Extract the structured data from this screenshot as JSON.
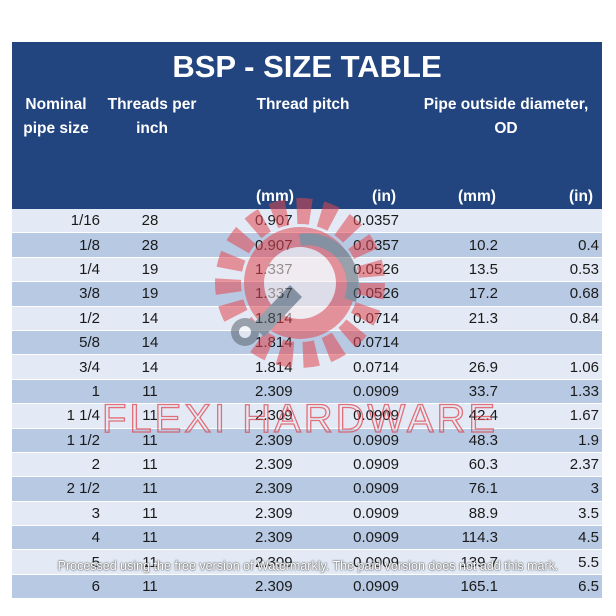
{
  "title": "BSP - SIZE TABLE",
  "headers": {
    "nominal_line1": "Nominal",
    "nominal_line2": "pipe size",
    "threads_line1": "Threads per",
    "threads_line2": "inch",
    "pitch": "Thread pitch",
    "od_line1": "Pipe outside diameter,",
    "od_line2": "OD",
    "unit_mm_1": "(mm)",
    "unit_in_1": "(in)",
    "unit_mm_2": "(mm)",
    "unit_in_2": "(in)"
  },
  "rows": [
    [
      "1/16",
      "28",
      "0.907",
      "0.0357",
      "",
      ""
    ],
    [
      "1/8",
      "28",
      "0.907",
      "0.0357",
      "10.2",
      "0.4"
    ],
    [
      "1/4",
      "19",
      "1.337",
      "0.0526",
      "13.5",
      "0.53"
    ],
    [
      "3/8",
      "19",
      "1.337",
      "0.0526",
      "17.2",
      "0.68"
    ],
    [
      "1/2",
      "14",
      "1.814",
      "0.0714",
      "21.3",
      "0.84"
    ],
    [
      "5/8",
      "14",
      "1.814",
      "0.0714",
      "",
      ""
    ],
    [
      "3/4",
      "14",
      "1.814",
      "0.0714",
      "26.9",
      "1.06"
    ],
    [
      "1",
      "11",
      "2.309",
      "0.0909",
      "33.7",
      "1.33"
    ],
    [
      "1 1/4",
      "11",
      "2.309",
      "0.0909",
      "42.4",
      "1.67"
    ],
    [
      "1 1/2",
      "11",
      "2.309",
      "0.0909",
      "48.3",
      "1.9"
    ],
    [
      "2",
      "11",
      "2.309",
      "0.0909",
      "60.3",
      "2.37"
    ],
    [
      "2 1/2",
      "11",
      "2.309",
      "0.0909",
      "76.1",
      "3"
    ],
    [
      "3",
      "11",
      "2.309",
      "0.0909",
      "88.9",
      "3.5"
    ],
    [
      "4",
      "11",
      "2.309",
      "0.0909",
      "114.3",
      "4.5"
    ],
    [
      "5",
      "11",
      "2.309",
      "0.0909",
      "139.7",
      "5.5"
    ],
    [
      "6",
      "11",
      "2.309",
      "0.0909",
      "165.1",
      "6.5"
    ]
  ],
  "watermark_text": "FLEXI HARDWARE",
  "footnote": "Processed using the free version of Watermarkly. The paid version does not add this mark.",
  "colors": {
    "header_bg": "#22457f",
    "row_dark": "#b8c9e3",
    "row_light": "#e3eaf5",
    "watermark": "#e2474f"
  }
}
